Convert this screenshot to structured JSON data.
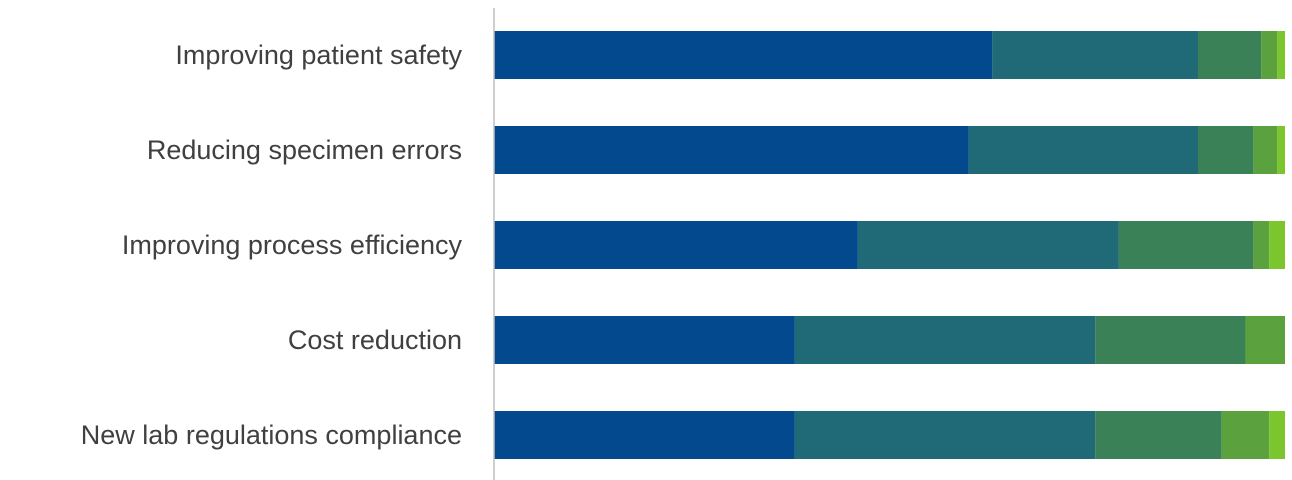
{
  "chart_data": {
    "type": "bar",
    "orientation": "horizontal",
    "stacked": true,
    "categories": [
      "Improving patient safety",
      "Reducing specimen errors",
      "Improving process efficiency",
      "Cost reduction",
      "New lab regulations compliance"
    ],
    "series": [
      {
        "values": [
          63,
          60,
          46,
          38,
          38
        ]
      },
      {
        "values": [
          26,
          29,
          33,
          38,
          38
        ]
      },
      {
        "values": [
          8,
          7,
          17,
          19,
          16
        ]
      },
      {
        "values": [
          2,
          3,
          2,
          5,
          6
        ]
      },
      {
        "values": [
          1,
          1,
          2,
          0,
          2
        ]
      }
    ],
    "xlim": [
      0,
      100
    ],
    "colors": [
      "#02498e",
      "#206976",
      "#3a8158",
      "#5ba23e",
      "#7bc52e"
    ],
    "axis_color": "#bfbfbf",
    "grid": false,
    "legend": "none"
  }
}
